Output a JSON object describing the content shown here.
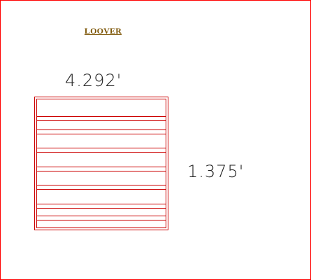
{
  "title": "LOOVER",
  "dimensions": {
    "width": "4.292'",
    "height": "1.375'"
  },
  "colors": {
    "frame": "#ff0000",
    "louver_lines": "#cc0000",
    "title": "#7a5200",
    "dimension_text": "#222222"
  },
  "louver": {
    "slat_groups": 7
  }
}
